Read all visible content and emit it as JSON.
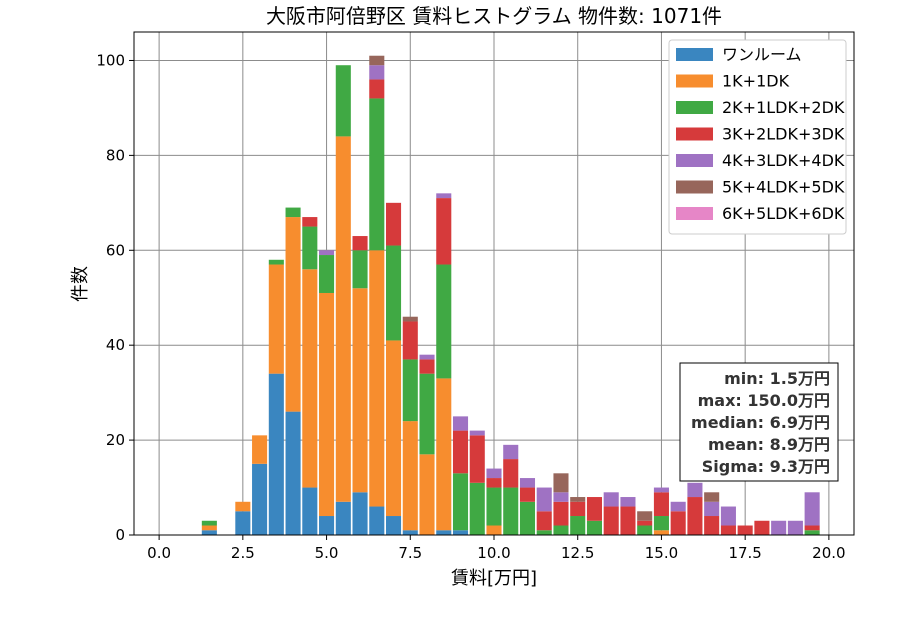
{
  "chart_data": {
    "type": "bar",
    "stacked": true,
    "title": "大阪市阿倍野区 賃料ヒストグラム 物件数: 1071件",
    "xlabel": "賃料[万円]",
    "ylabel": "件数",
    "xlim": [
      -0.75,
      20.75
    ],
    "ylim": [
      0,
      106
    ],
    "xticks": [
      "0.0",
      "2.5",
      "5.0",
      "7.5",
      "10.0",
      "12.5",
      "15.0",
      "17.5",
      "20.0"
    ],
    "yticks": [
      "0",
      "20",
      "40",
      "60",
      "80",
      "100"
    ],
    "grid": true,
    "legend_position": "top-right",
    "bin_width": 0.5,
    "x": [
      1.5,
      2.0,
      2.5,
      3.0,
      3.5,
      4.0,
      4.5,
      5.0,
      5.5,
      6.0,
      6.5,
      7.0,
      7.5,
      8.0,
      8.5,
      9.0,
      9.5,
      10.0,
      10.5,
      11.0,
      11.5,
      12.0,
      12.5,
      13.0,
      13.5,
      14.0,
      14.5,
      15.0,
      15.5,
      16.0,
      16.5,
      17.0,
      17.5,
      18.0,
      18.5,
      19.0,
      19.5
    ],
    "series": [
      {
        "name": "ワンルーム",
        "color": "#3a86c0",
        "values": [
          1,
          0,
          5,
          15,
          34,
          26,
          10,
          4,
          7,
          9,
          6,
          4,
          1,
          0,
          1,
          1,
          0,
          0,
          0,
          0,
          0,
          0,
          0,
          0,
          0,
          0,
          0,
          0,
          0,
          0,
          0,
          0,
          0,
          0,
          0,
          0,
          0
        ]
      },
      {
        "name": "1K+1DK",
        "color": "#f78d2e",
        "values": [
          1,
          0,
          2,
          6,
          23,
          41,
          46,
          47,
          77,
          43,
          54,
          37,
          23,
          17,
          32,
          0,
          0,
          2,
          0,
          0,
          0,
          0,
          0,
          0,
          0,
          0,
          0,
          1,
          0,
          0,
          0,
          0,
          0,
          0,
          0,
          0,
          0
        ]
      },
      {
        "name": "2K+1LDK+2DK",
        "color": "#40a944",
        "values": [
          1,
          0,
          0,
          0,
          1,
          2,
          9,
          8,
          15,
          8,
          32,
          20,
          13,
          17,
          24,
          12,
          11,
          8,
          10,
          7,
          1,
          2,
          4,
          3,
          0,
          0,
          2,
          3,
          0,
          0,
          0,
          0,
          0,
          0,
          0,
          0,
          1
        ]
      },
      {
        "name": "3K+2LDK+3DK",
        "color": "#d63a3b",
        "values": [
          0,
          0,
          0,
          0,
          0,
          0,
          2,
          0,
          0,
          3,
          4,
          9,
          8,
          3,
          14,
          9,
          10,
          2,
          6,
          3,
          4,
          5,
          3,
          5,
          6,
          6,
          1,
          5,
          5,
          8,
          4,
          2,
          2,
          3,
          0,
          0,
          1
        ]
      },
      {
        "name": "4K+3LDK+4DK",
        "color": "#9f72c3",
        "values": [
          0,
          0,
          0,
          0,
          0,
          0,
          0,
          1,
          0,
          0,
          3,
          0,
          0,
          1,
          1,
          3,
          1,
          2,
          3,
          2,
          5,
          2,
          0,
          0,
          3,
          2,
          0,
          1,
          2,
          3,
          3,
          4,
          0,
          0,
          3,
          3,
          7
        ]
      },
      {
        "name": "5K+4LDK+5DK",
        "color": "#97665b",
        "values": [
          0,
          0,
          0,
          0,
          0,
          0,
          0,
          0,
          0,
          0,
          2,
          0,
          1,
          0,
          0,
          0,
          0,
          0,
          0,
          0,
          0,
          4,
          1,
          0,
          0,
          0,
          2,
          0,
          0,
          0,
          2,
          0,
          0,
          0,
          0,
          0,
          0
        ]
      },
      {
        "name": "6K+5LDK+6DK",
        "color": "#e686c7",
        "values": [
          0,
          0,
          0,
          0,
          0,
          0,
          0,
          0,
          0,
          0,
          0,
          0,
          0,
          0,
          0,
          0,
          0,
          0,
          0,
          0,
          0,
          0,
          0,
          0,
          0,
          0,
          0,
          0,
          0,
          0,
          0,
          0,
          0,
          0,
          0,
          0,
          0
        ]
      }
    ],
    "stats": {
      "min": "min: 1.5万円",
      "max": "max: 150.0万円",
      "median": "median: 6.9万円",
      "mean": "mean: 8.9万円",
      "sigma": "Sigma: 9.3万円"
    }
  }
}
